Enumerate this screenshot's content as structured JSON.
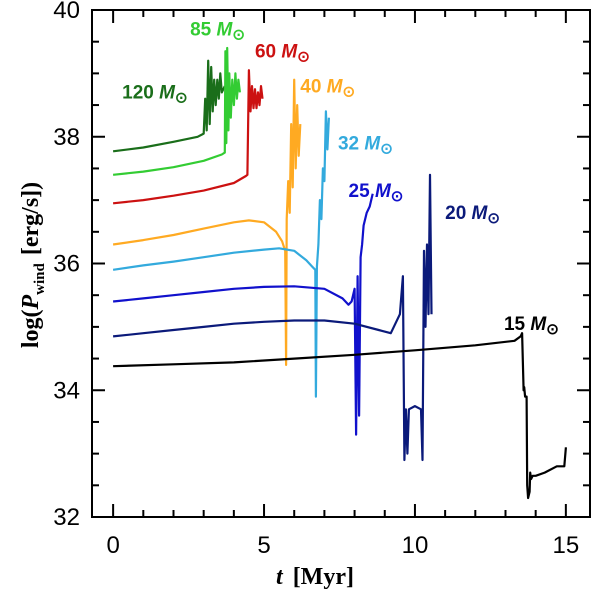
{
  "chart_data": {
    "type": "line",
    "title": "",
    "xlabel_symbol": "t",
    "xlabel_unit": "[Myr]",
    "ylabel_prefix": "log(",
    "ylabel_symbol": "P",
    "ylabel_sub": "wind",
    "ylabel_unit": "[erg/s])",
    "xlim": [
      -0.7,
      15.8
    ],
    "ylim": [
      32,
      40
    ],
    "xticks": [
      0,
      5,
      10,
      15
    ],
    "yticks": [
      32,
      34,
      36,
      38,
      40
    ],
    "mass_unit": "M",
    "sun_symbol": "⊙",
    "series": [
      {
        "name": "120",
        "color": "#1a6e1a",
        "label_pos": [
          0.3,
          38.6
        ],
        "x": [
          0,
          1,
          2,
          2.8,
          3.0,
          3.05,
          3.1,
          3.15,
          3.2,
          3.25,
          3.3,
          3.35,
          3.4,
          3.45,
          3.5,
          3.55,
          3.6,
          3.7
        ],
        "y": [
          37.77,
          37.83,
          37.92,
          38.0,
          38.05,
          38.6,
          38.1,
          39.2,
          38.2,
          39.1,
          38.4,
          38.9,
          38.5,
          38.9,
          38.6,
          39.0,
          38.7,
          38.8
        ]
      },
      {
        "name": "85",
        "color": "#33cc33",
        "label_pos": [
          2.55,
          39.6
        ],
        "x": [
          0,
          1,
          2,
          3,
          3.6,
          3.7,
          3.72,
          3.75,
          3.78,
          3.82,
          3.85,
          3.9,
          3.95,
          4.0,
          4.05,
          4.1,
          4.15,
          4.2
        ],
        "y": [
          37.4,
          37.45,
          37.52,
          37.62,
          37.72,
          37.75,
          39.35,
          37.9,
          39.4,
          38.1,
          39.0,
          38.3,
          38.9,
          38.5,
          39.0,
          38.6,
          38.9,
          38.7
        ]
      },
      {
        "name": "60",
        "color": "#cc1111",
        "label_pos": [
          4.7,
          39.25
        ],
        "x": [
          0,
          1,
          2,
          3,
          4,
          4.4,
          4.45,
          4.5,
          4.55,
          4.6,
          4.65,
          4.7,
          4.75,
          4.8,
          4.85,
          4.9,
          4.95
        ],
        "y": [
          36.95,
          37.0,
          37.07,
          37.15,
          37.27,
          37.38,
          37.4,
          39.05,
          38.4,
          38.8,
          38.45,
          38.75,
          38.45,
          38.7,
          38.5,
          38.8,
          38.6
        ]
      },
      {
        "name": "40",
        "color": "#ffaa22",
        "label_pos": [
          6.2,
          38.7
        ],
        "x": [
          0,
          1,
          2,
          3,
          4,
          4.5,
          5,
          5.4,
          5.6,
          5.7,
          5.73,
          5.75,
          5.8,
          5.85,
          5.9,
          5.95,
          6.0,
          6.05,
          6.1,
          6.15,
          6.2
        ],
        "y": [
          36.3,
          36.37,
          36.45,
          36.55,
          36.65,
          36.68,
          36.65,
          36.5,
          36.35,
          36.2,
          34.4,
          36.7,
          37.3,
          36.8,
          38.2,
          37.2,
          38.9,
          37.5,
          38.5,
          37.7,
          38.2
        ]
      },
      {
        "name": "32",
        "color": "#33aadd",
        "label_pos": [
          7.45,
          37.8
        ],
        "x": [
          0,
          1,
          2,
          3,
          4,
          5,
          5.5,
          6,
          6.4,
          6.6,
          6.7,
          6.72,
          6.75,
          6.8,
          6.85,
          6.9,
          6.95,
          7.0,
          7.05,
          7.1,
          7.15
        ],
        "y": [
          35.9,
          35.97,
          36.03,
          36.1,
          36.17,
          36.22,
          36.24,
          36.2,
          36.05,
          35.95,
          35.9,
          33.9,
          35.95,
          36.3,
          37.0,
          36.7,
          37.5,
          37.3,
          38.4,
          37.8,
          38.3
        ]
      },
      {
        "name": "25",
        "color": "#1111cc",
        "label_pos": [
          7.8,
          37.05
        ],
        "x": [
          0,
          1,
          2,
          3,
          4,
          5,
          6,
          7,
          7.6,
          7.8,
          7.9,
          8.0,
          8.05,
          8.1,
          8.15,
          8.2,
          8.25,
          8.3,
          8.4,
          8.5,
          8.6
        ],
        "y": [
          35.4,
          35.45,
          35.5,
          35.55,
          35.6,
          35.63,
          35.64,
          35.6,
          35.45,
          35.35,
          35.4,
          35.6,
          33.3,
          35.8,
          33.6,
          36.1,
          36.3,
          36.6,
          36.8,
          36.9,
          37.1
        ]
      },
      {
        "name": "20",
        "color": "#0b1a7a",
        "label_pos": [
          11.0,
          36.7
        ],
        "x": [
          0,
          1,
          2,
          3,
          4,
          5,
          6,
          7,
          8,
          8.8,
          9.2,
          9.5,
          9.6,
          9.65,
          9.7,
          9.75,
          9.8,
          10.0,
          10.2,
          10.25,
          10.3,
          10.35,
          10.4,
          10.45,
          10.5,
          10.55
        ],
        "y": [
          34.85,
          34.9,
          34.95,
          35.0,
          35.05,
          35.08,
          35.1,
          35.1,
          35.05,
          34.95,
          34.9,
          35.2,
          35.8,
          32.9,
          33.7,
          33.0,
          33.7,
          33.75,
          33.7,
          32.9,
          36.2,
          35.0,
          36.3,
          35.2,
          37.4,
          35.2
        ]
      },
      {
        "name": "15",
        "color": "#000000",
        "label_pos": [
          12.95,
          34.95
        ],
        "x": [
          0,
          2,
          4,
          6,
          8,
          10,
          12,
          13.3,
          13.5,
          13.55,
          13.6,
          13.62,
          13.65,
          13.7,
          13.72,
          13.75,
          13.8,
          13.82,
          13.85,
          13.9,
          14.0,
          14.3,
          14.7,
          14.95,
          15.0
        ],
        "y": [
          34.38,
          34.41,
          34.44,
          34.5,
          34.56,
          34.63,
          34.71,
          34.78,
          34.85,
          34.9,
          34.0,
          34.05,
          33.9,
          33.9,
          32.5,
          32.3,
          32.4,
          32.7,
          32.6,
          32.65,
          32.65,
          32.7,
          32.8,
          32.8,
          33.1
        ]
      }
    ]
  }
}
